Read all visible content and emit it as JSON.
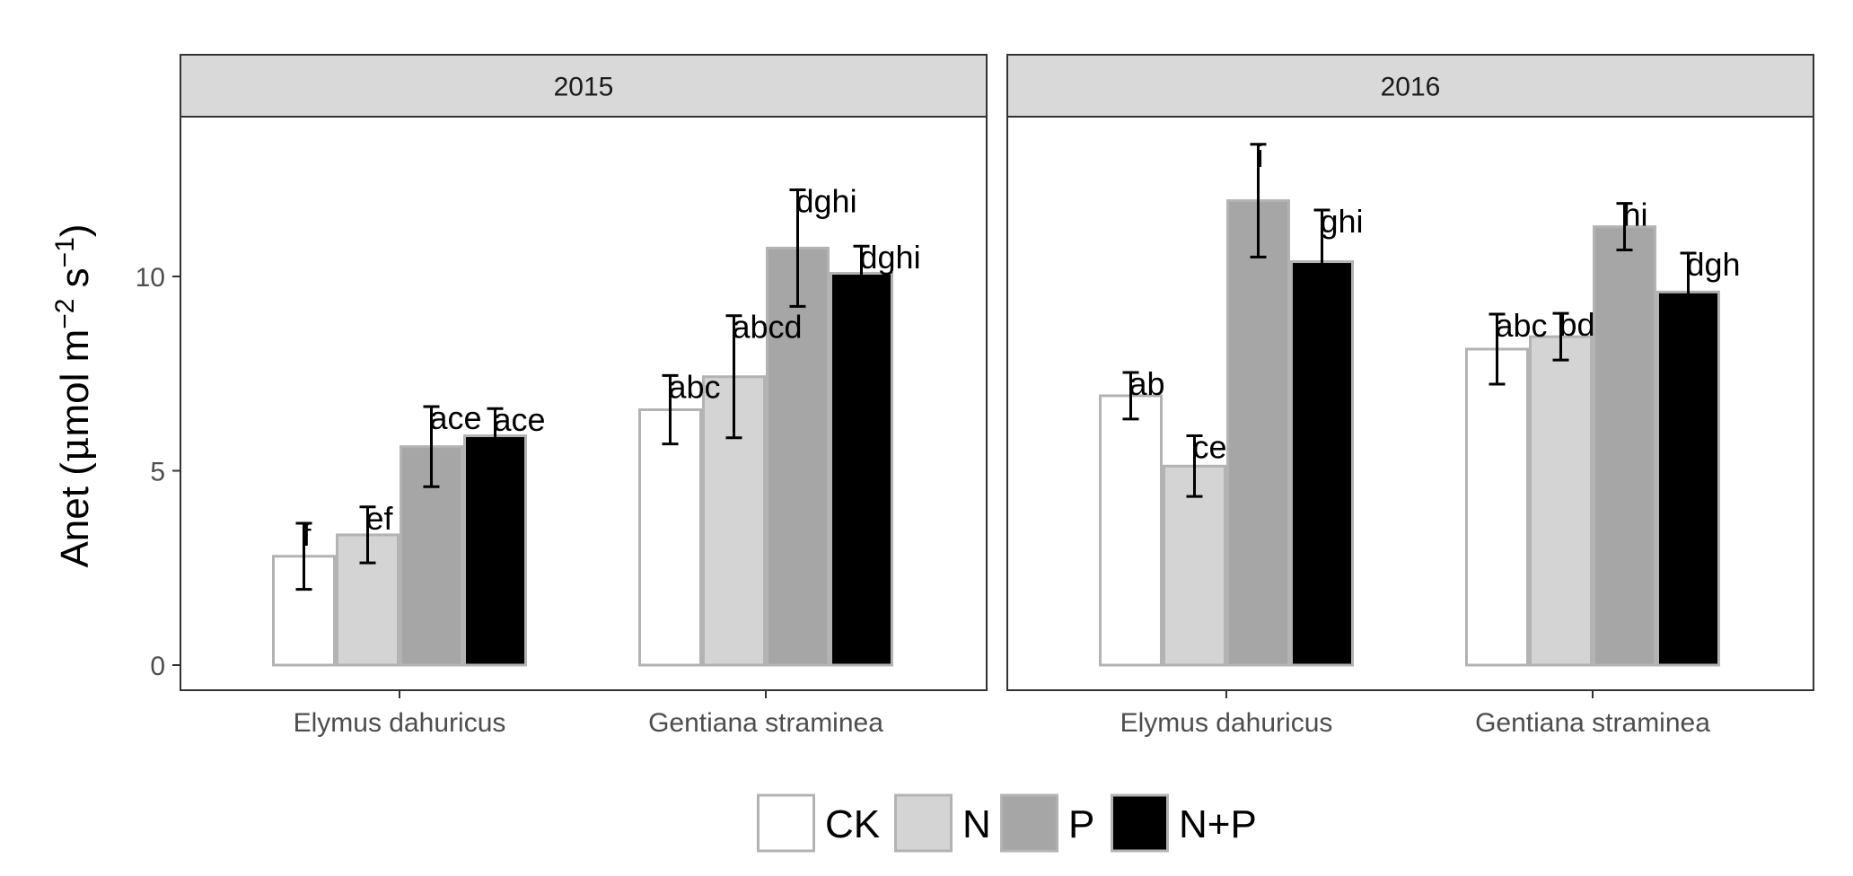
{
  "chart_data": {
    "type": "bar",
    "ylabel": "Anet (μmol m⁻² s⁻¹)",
    "ylabel_parts": {
      "main": "Anet (",
      "mu": "μ",
      "mol_m": "mol m",
      "exp1": "−2",
      "s": " s",
      "exp2": "−1",
      "close": ")"
    },
    "ylim": [
      0,
      14.3
    ],
    "yticks": [
      "0",
      "5",
      "10"
    ],
    "ytick_values": [
      0,
      5,
      10
    ],
    "categories": [
      "Elymus dahuricus",
      "Gentiana straminea"
    ],
    "legend_position": "bottom",
    "series": [
      {
        "name": "CK",
        "fill": "#ffffff",
        "stroke": "#b3b3b3"
      },
      {
        "name": "N",
        "fill": "#d4d4d4",
        "stroke": "#b3b3b3"
      },
      {
        "name": "P",
        "fill": "#a6a6a6",
        "stroke": "#b3b3b3"
      },
      {
        "name": "N+P",
        "fill": "#000000",
        "stroke": "#b3b3b3"
      }
    ],
    "panels": [
      {
        "title": "2015",
        "groups": [
          {
            "category": "Elymus dahuricus",
            "values": [
              2.8,
              3.35,
              5.62,
              5.9
            ],
            "errors": [
              0.85,
              0.72,
              1.03,
              0.7
            ],
            "labels": [
              "f",
              "ef",
              "ace",
              "ace"
            ]
          },
          {
            "category": "Gentiana straminea",
            "values": [
              6.57,
              7.42,
              10.73,
              10.08
            ],
            "errors": [
              0.88,
              1.57,
              1.5,
              0.7
            ],
            "labels": [
              "abc",
              "abcd",
              "dghi",
              "dghi"
            ]
          }
        ]
      },
      {
        "title": "2016",
        "groups": [
          {
            "category": "Elymus dahuricus",
            "values": [
              6.93,
              5.12,
              11.95,
              10.38
            ],
            "errors": [
              0.6,
              0.78,
              1.45,
              1.33
            ],
            "labels": [
              "ab",
              "ce",
              "i",
              "ghi"
            ]
          },
          {
            "category": "Gentiana straminea",
            "values": [
              8.13,
              8.45,
              11.28,
              9.6
            ],
            "errors": [
              0.9,
              0.6,
              0.6,
              1.0
            ],
            "labels": [
              "abc",
              "bd",
              "hi",
              "dgh"
            ]
          }
        ]
      }
    ]
  }
}
